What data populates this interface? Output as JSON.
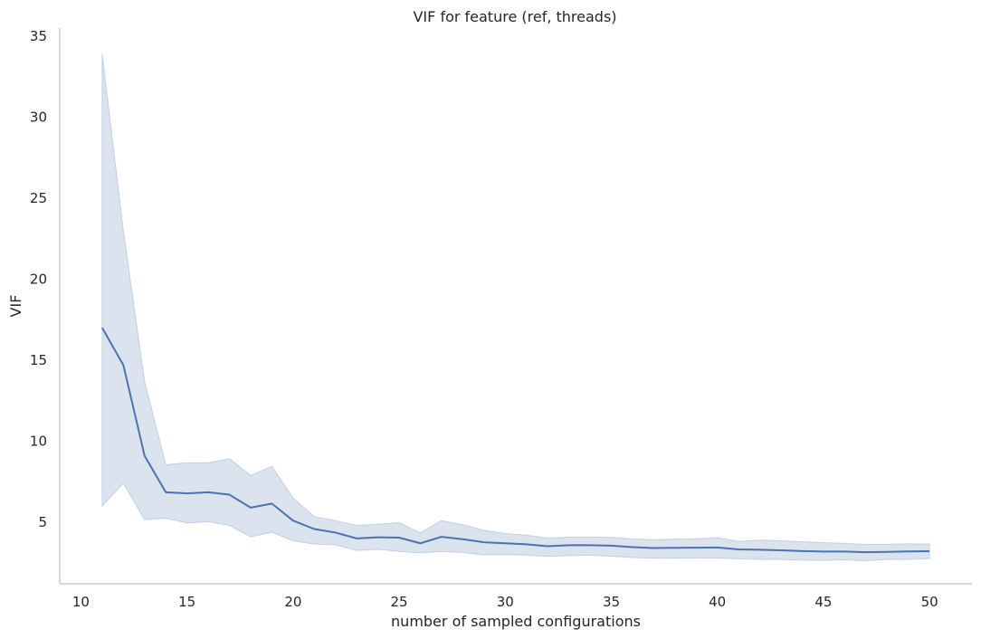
{
  "chart_data": {
    "type": "line",
    "title": "VIF for feature (ref, threads)",
    "xlabel": "number of sampled configurations",
    "ylabel": "VIF",
    "xlim": [
      9,
      52
    ],
    "ylim": [
      1.2,
      35.5
    ],
    "xticks": [
      10,
      15,
      20,
      25,
      30,
      35,
      40,
      45,
      50
    ],
    "yticks": [
      5,
      10,
      15,
      20,
      25,
      30,
      35
    ],
    "grid": false,
    "colors": {
      "line": "#4c72b0",
      "band": "#4c72b0"
    },
    "x": [
      11,
      12,
      13,
      14,
      15,
      16,
      17,
      18,
      19,
      20,
      21,
      22,
      23,
      24,
      25,
      26,
      27,
      28,
      29,
      30,
      31,
      32,
      33,
      34,
      35,
      36,
      37,
      38,
      39,
      40,
      41,
      42,
      43,
      44,
      45,
      46,
      47,
      48,
      49,
      50
    ],
    "series": [
      {
        "values": [
          17.0,
          14.7,
          9.1,
          6.85,
          6.78,
          6.85,
          6.7,
          5.9,
          6.15,
          5.1,
          4.58,
          4.36,
          4.0,
          4.07,
          4.05,
          3.7,
          4.1,
          3.95,
          3.76,
          3.7,
          3.64,
          3.52,
          3.58,
          3.58,
          3.55,
          3.46,
          3.41,
          3.42,
          3.43,
          3.44,
          3.32,
          3.3,
          3.27,
          3.22,
          3.19,
          3.19,
          3.15,
          3.17,
          3.2,
          3.21
        ],
        "lower": [
          6.0,
          7.4,
          5.15,
          5.25,
          4.95,
          5.03,
          4.8,
          4.1,
          4.38,
          3.85,
          3.65,
          3.6,
          3.25,
          3.32,
          3.2,
          3.1,
          3.2,
          3.13,
          2.98,
          3.0,
          2.97,
          2.88,
          2.93,
          2.97,
          2.9,
          2.82,
          2.77,
          2.78,
          2.79,
          2.78,
          2.74,
          2.7,
          2.7,
          2.66,
          2.64,
          2.67,
          2.62,
          2.7,
          2.7,
          2.76
        ],
        "upper": [
          33.9,
          23.0,
          13.7,
          8.55,
          8.67,
          8.67,
          8.92,
          7.9,
          8.45,
          6.5,
          5.35,
          5.1,
          4.8,
          4.88,
          4.98,
          4.35,
          5.1,
          4.85,
          4.5,
          4.3,
          4.2,
          4.02,
          4.08,
          4.08,
          4.07,
          3.97,
          3.92,
          3.96,
          3.98,
          4.05,
          3.82,
          3.9,
          3.86,
          3.8,
          3.74,
          3.7,
          3.62,
          3.64,
          3.67,
          3.65
        ]
      }
    ]
  }
}
